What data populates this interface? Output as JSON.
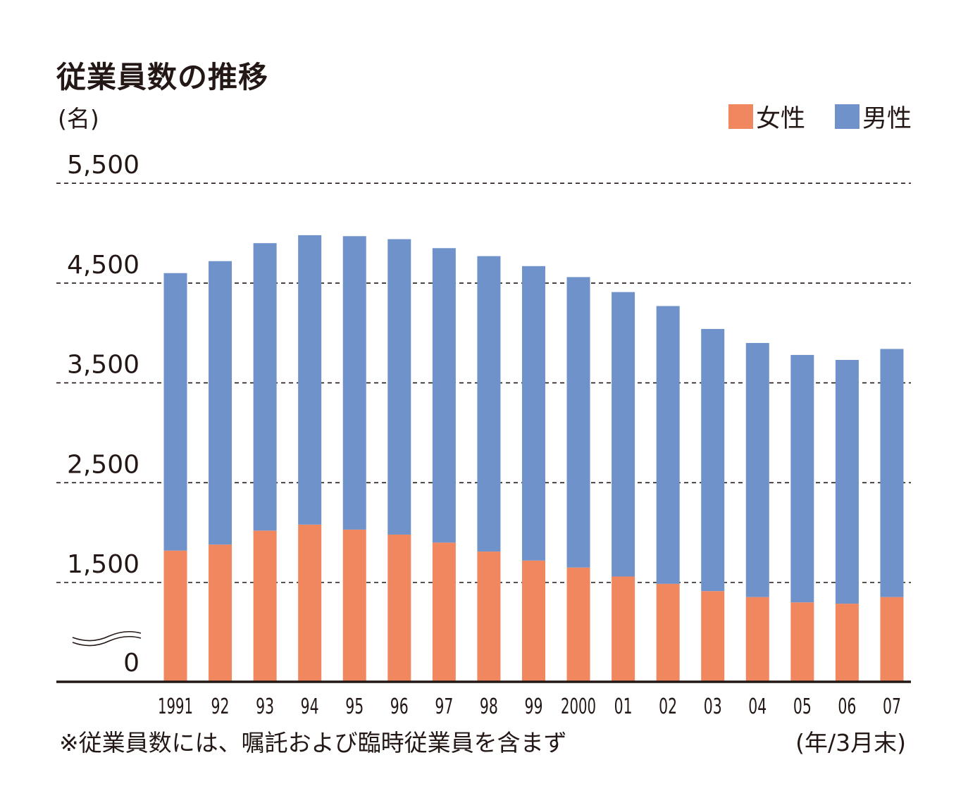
{
  "title": "従業員数の推移",
  "y_unit": "(名)",
  "legend": [
    {
      "label": "女性",
      "color": "#f0875f"
    },
    {
      "label": "男性",
      "color": "#6f92cb"
    }
  ],
  "note": "※従業員数には、嘱託および臨時従業員を含まず",
  "x_unit": "(年/3月末)",
  "chart_data": {
    "type": "bar",
    "stacked": true,
    "axis_break": true,
    "categories": [
      "1991",
      "92",
      "93",
      "94",
      "95",
      "96",
      "97",
      "98",
      "99",
      "2000",
      "01",
      "02",
      "03",
      "04",
      "05",
      "06",
      "07"
    ],
    "y_tick_labels": [
      "0",
      "1,500",
      "2,500",
      "3,500",
      "4,500",
      "5,500"
    ],
    "y_tick_values": [
      0,
      1500,
      2500,
      3500,
      4500,
      5500
    ],
    "series": [
      {
        "name": "女性",
        "color": "#f0875f",
        "values": [
          1820,
          1880,
          2020,
          2080,
          2030,
          1980,
          1900,
          1810,
          1720,
          1650,
          1560,
          1480,
          1370,
          1280,
          1200,
          1180,
          1280
        ]
      },
      {
        "name": "男性",
        "color": "#6f92cb",
        "values": [
          2780,
          2840,
          2880,
          2900,
          2940,
          2960,
          2950,
          2960,
          2950,
          2910,
          2850,
          2790,
          2670,
          2620,
          2580,
          2550,
          2560
        ]
      }
    ],
    "grid": "dashed horizontal at labeled ticks"
  }
}
